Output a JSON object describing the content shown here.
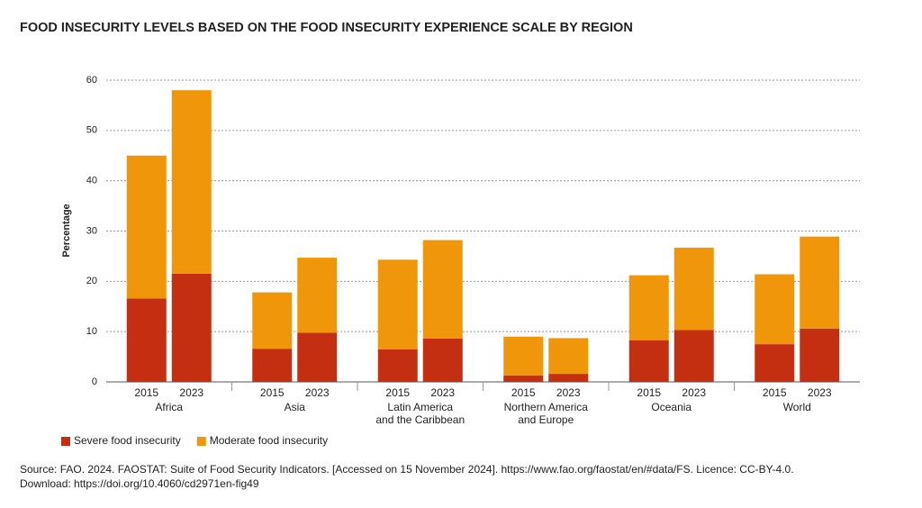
{
  "chart_data": {
    "type": "stacked-bar",
    "title": "FOOD INSECURITY LEVELS BASED ON THE FOOD INSECURITY EXPERIENCE SCALE BY REGION",
    "y_label": "Percentage",
    "groups": [
      "Africa",
      "Asia",
      "Latin America\nand the Caribbean",
      "Northern America\nand Europe",
      "Oceania",
      "World"
    ],
    "categories": [
      "2015",
      "2023",
      "2015",
      "2023",
      "2015",
      "2023",
      "2015",
      "2023",
      "2015",
      "2023",
      "2015",
      "2023"
    ],
    "series": [
      {
        "name": "Severe food insecurity",
        "color": "#c32f10",
        "values": [
          16.6,
          21.5,
          6.6,
          9.8,
          6.5,
          8.6,
          1.3,
          1.6,
          8.3,
          10.3,
          7.5,
          10.6
        ]
      },
      {
        "name": "Moderate food insecurity",
        "color": "#f0960a",
        "values": [
          28.4,
          36.5,
          11.2,
          14.9,
          17.8,
          19.6,
          7.7,
          7.1,
          12.9,
          16.4,
          13.9,
          18.3
        ]
      }
    ],
    "ylim": [
      0,
      60
    ],
    "yticks": [
      0,
      10,
      20,
      30,
      40,
      50,
      60
    ],
    "grid": true,
    "source": "Source: FAO. 2024. FAOSTAT: Suite of Food Security Indicators. [Accessed on 15 November 2024]. https://www.fao.org/faostat/en/#data/FS. Licence: CC-BY-4.0.",
    "download": "Download: https://doi.org/10.4060/cd2971en-fig49"
  }
}
